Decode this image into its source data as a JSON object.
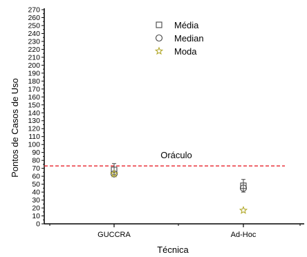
{
  "chart_data": {
    "type": "scatter",
    "title": "",
    "xlabel": "Técnica",
    "ylabel": "Pontos de Casos de Uso",
    "categories": [
      "GUCCRA",
      "Ad-Hoc"
    ],
    "ylim": [
      0,
      270
    ],
    "y_tick_step": 10,
    "grid": false,
    "legend_position": "top-center",
    "series": [
      {
        "name": "Média",
        "marker": "square",
        "values": [
          68,
          48
        ],
        "error_low": [
          62,
          40
        ],
        "error_high": [
          76,
          56
        ]
      },
      {
        "name": "Median",
        "marker": "circle",
        "values": [
          63,
          45
        ]
      },
      {
        "name": "Moda",
        "marker": "star",
        "values": [
          63,
          17
        ]
      }
    ],
    "reference_line": {
      "label": "Oráculo",
      "value": 73,
      "color": "#e8202a"
    },
    "colors": {
      "axis": "#000000",
      "star": "#b3a92c",
      "marker_stroke": "#444444"
    }
  }
}
